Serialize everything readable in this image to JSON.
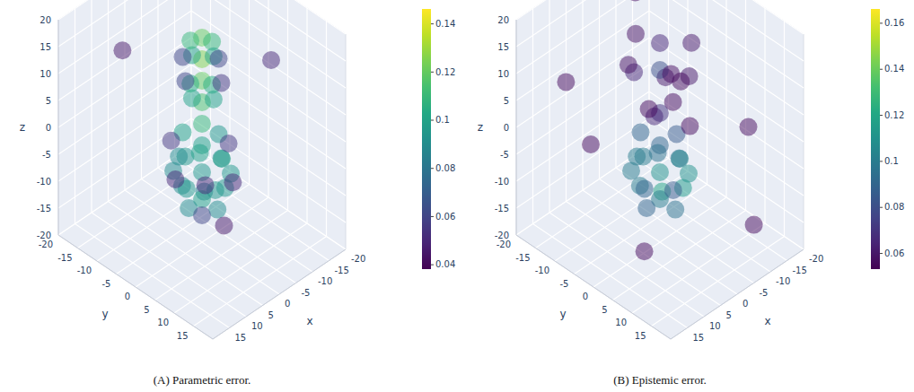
{
  "chart_data": [
    {
      "type": "volume",
      "caption": "(A) Parametric error.",
      "xlabel": "x",
      "ylabel": "y",
      "zlabel": "z",
      "xlim": [
        -20,
        20
      ],
      "ylim": [
        -20,
        20
      ],
      "zlim": [
        -20,
        20
      ],
      "xticks": [
        -20,
        -15,
        -10,
        -5,
        0,
        5,
        10,
        15
      ],
      "yticks": [
        -20,
        -15,
        -10,
        -5,
        0,
        5,
        10,
        15
      ],
      "zticks": [
        -20,
        -15,
        -10,
        -5,
        0,
        5,
        10,
        15,
        20
      ],
      "grid": true,
      "points": {
        "x": [
          0,
          0,
          0,
          0,
          0,
          3,
          -3,
          0,
          0,
          3,
          -3,
          0,
          0,
          5,
          -5,
          0,
          0,
          0,
          5,
          -5,
          0,
          0,
          0,
          6,
          -6,
          0,
          0,
          4,
          -4,
          4,
          -4,
          0,
          4,
          -4,
          0,
          0,
          8,
          -8,
          0,
          0,
          0,
          6,
          -15,
          10,
          5
        ],
        "y": [
          0,
          0,
          0,
          0,
          0,
          0,
          0,
          3,
          -3,
          0,
          0,
          3,
          -3,
          0,
          0,
          5,
          -5,
          0,
          0,
          0,
          5,
          -5,
          0,
          0,
          0,
          6,
          -6,
          4,
          -4,
          -4,
          4,
          0,
          0,
          0,
          4,
          -4,
          0,
          0,
          8,
          -8,
          0,
          6,
          5,
          -12,
          10
        ],
        "z": [
          18,
          14,
          10,
          6,
          2,
          16,
          16,
          16,
          16,
          8,
          8,
          8,
          8,
          12,
          12,
          12,
          12,
          -2,
          -2,
          -2,
          -2,
          -2,
          -7,
          -7,
          -7,
          -7,
          -7,
          -7,
          -7,
          -7,
          -7,
          -12,
          -12,
          -12,
          -12,
          -12,
          -5,
          -5,
          -5,
          -5,
          -15,
          -4,
          10,
          14,
          -10
        ],
        "values": [
          0.12,
          0.125,
          0.12,
          0.115,
          0.11,
          0.1,
          0.11,
          0.1,
          0.11,
          0.1,
          0.105,
          0.1,
          0.105,
          0.06,
          0.06,
          0.055,
          0.06,
          0.1,
          0.095,
          0.095,
          0.09,
          0.1,
          0.095,
          0.09,
          0.1,
          0.095,
          0.09,
          0.085,
          0.1,
          0.09,
          0.095,
          0.1,
          0.09,
          0.095,
          0.09,
          0.095,
          0.05,
          0.055,
          0.05,
          0.055,
          0.06,
          0.05,
          0.05,
          0.045,
          0.045
        ]
      },
      "colorbar": {
        "range": [
          0.038,
          0.146
        ],
        "ticks": [
          0.04,
          0.06,
          0.08,
          0.1,
          0.12,
          0.14
        ]
      }
    },
    {
      "type": "volume",
      "caption": "(B) Epistemic error.",
      "xlabel": "x",
      "ylabel": "y",
      "zlabel": "z",
      "xlim": [
        -20,
        20
      ],
      "ylim": [
        -20,
        20
      ],
      "zlim": [
        -20,
        20
      ],
      "xticks": [
        -20,
        -15,
        -10,
        -5,
        0,
        5,
        10,
        15
      ],
      "yticks": [
        -20,
        -15,
        -10,
        -5,
        0,
        5,
        10,
        15
      ],
      "zticks": [
        -20,
        -15,
        -10,
        -5,
        0,
        5,
        10,
        15,
        20
      ],
      "grid": true,
      "points": {
        "x": [
          0,
          5,
          -5,
          0,
          0,
          0,
          6,
          -6,
          0,
          0,
          4,
          -4,
          4,
          -4,
          0,
          4,
          -4,
          0,
          0,
          0,
          4,
          -4,
          2,
          -3,
          6,
          -6,
          0,
          0,
          8,
          -8,
          3,
          -2,
          -15,
          12,
          -10,
          14,
          -12,
          10,
          -16,
          15
        ],
        "y": [
          0,
          0,
          0,
          5,
          -5,
          0,
          0,
          0,
          6,
          -6,
          4,
          -4,
          -4,
          4,
          0,
          0,
          0,
          4,
          -4,
          0,
          2,
          -2,
          -5,
          5,
          -3,
          3,
          0,
          0,
          4,
          -4,
          8,
          -8,
          10,
          -14,
          -15,
          8,
          14,
          12,
          -6,
          -5
        ],
        "z": [
          -2,
          -2,
          -2,
          -2,
          -2,
          -7,
          -7,
          -7,
          -7,
          -7,
          -7,
          -7,
          -7,
          -7,
          -12,
          -12,
          -12,
          -12,
          -12,
          4,
          6,
          8,
          10,
          12,
          14,
          16,
          12,
          17,
          10,
          6,
          15,
          14,
          0,
          8,
          15,
          -12,
          -15,
          16,
          -8,
          2
        ],
        "values": [
          0.09,
          0.1,
          0.085,
          0.095,
          0.09,
          0.11,
          0.1,
          0.105,
          0.115,
          0.1,
          0.12,
          0.095,
          0.1,
          0.11,
          0.1,
          0.09,
          0.085,
          0.095,
          0.09,
          0.07,
          0.065,
          0.06,
          0.065,
          0.06,
          0.058,
          0.06,
          0.08,
          0.065,
          0.056,
          0.057,
          0.056,
          0.058,
          0.056,
          0.056,
          0.056,
          0.056,
          0.056,
          0.056,
          0.056,
          0.056
        ]
      },
      "colorbar": {
        "range": [
          0.053,
          0.166
        ],
        "ticks": [
          0.06,
          0.08,
          0.1,
          0.12,
          0.14,
          0.16
        ]
      }
    }
  ]
}
